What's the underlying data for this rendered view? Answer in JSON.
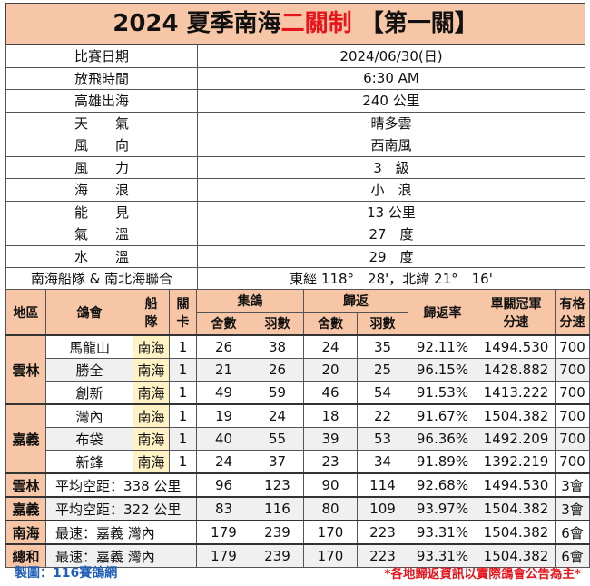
{
  "title": {
    "part1": "2024 夏季南海",
    "part2": "二關制",
    "part3": " 【第一關】"
  },
  "info": [
    {
      "label": "比賽日期",
      "value": "2024/06/30(日)"
    },
    {
      "label": "放飛時間",
      "value": "6:30 AM"
    },
    {
      "label": "高雄出海",
      "value": "240 公里"
    },
    {
      "label": "天　　氣",
      "value": "晴多雲"
    },
    {
      "label": "風　　向",
      "value": "西南風"
    },
    {
      "label": "風　　力",
      "value": "3　級"
    },
    {
      "label": "海　　浪",
      "value": "小　浪"
    },
    {
      "label": "能　　見",
      "value": "13 公里"
    },
    {
      "label": "氣　　溫",
      "value": "27　度"
    },
    {
      "label": "水　　溫",
      "value": "29　度"
    },
    {
      "label": "南海船隊 & 南北海聯合",
      "value": "東經 118°　28'，北緯 21°　16'"
    }
  ],
  "headers": {
    "region": "地區",
    "club": "鴿會",
    "fleet1": "船",
    "fleet2": "隊",
    "stage1": "關",
    "stage2": "卡",
    "collected": "集鴿",
    "returned": "歸返",
    "members": "舍數",
    "birds": "羽數",
    "rate": "歸返率",
    "speed1": "單關冠軍",
    "speed2": "分速",
    "qual1": "有格",
    "qual2": "分速"
  },
  "regions": [
    {
      "name": "雲林",
      "rows": [
        {
          "club": "馬龍山",
          "fleet": "南海",
          "stage": "1",
          "c_members": "26",
          "c_birds": "38",
          "r_members": "24",
          "r_birds": "35",
          "rate": "92.11%",
          "speed": "1494.530",
          "qual": "700"
        },
        {
          "club": "勝全",
          "fleet": "南海",
          "stage": "1",
          "c_members": "21",
          "c_birds": "26",
          "r_members": "20",
          "r_birds": "25",
          "rate": "96.15%",
          "speed": "1428.882",
          "qual": "700"
        },
        {
          "club": "創新",
          "fleet": "南海",
          "stage": "1",
          "c_members": "49",
          "c_birds": "59",
          "r_members": "46",
          "r_birds": "54",
          "rate": "91.53%",
          "speed": "1413.222",
          "qual": "700"
        }
      ]
    },
    {
      "name": "嘉義",
      "rows": [
        {
          "club": "灣內",
          "fleet": "南海",
          "stage": "1",
          "c_members": "19",
          "c_birds": "24",
          "r_members": "18",
          "r_birds": "22",
          "rate": "91.67%",
          "speed": "1504.382",
          "qual": "700"
        },
        {
          "club": "布袋",
          "fleet": "南海",
          "stage": "1",
          "c_members": "40",
          "c_birds": "55",
          "r_members": "39",
          "r_birds": "53",
          "rate": "96.36%",
          "speed": "1492.209",
          "qual": "700"
        },
        {
          "club": "新鋒",
          "fleet": "南海",
          "stage": "1",
          "c_members": "24",
          "c_birds": "37",
          "r_members": "23",
          "r_birds": "34",
          "rate": "91.89%",
          "speed": "1392.219",
          "qual": "700"
        }
      ]
    }
  ],
  "summaries": [
    {
      "name": "雲林",
      "note": "平均空距：338 公里",
      "c_members": "96",
      "c_birds": "123",
      "r_members": "90",
      "r_birds": "114",
      "rate": "92.68%",
      "speed": "1494.530",
      "qual": "3會"
    },
    {
      "name": "嘉義",
      "note": "平均空距：322 公里",
      "c_members": "83",
      "c_birds": "116",
      "r_members": "80",
      "r_birds": "109",
      "rate": "93.97%",
      "speed": "1504.382",
      "qual": "3會"
    },
    {
      "name": "南海",
      "note": "最速：嘉義 灣內",
      "c_members": "179",
      "c_birds": "239",
      "r_members": "170",
      "r_birds": "223",
      "rate": "93.31%",
      "speed": "1504.382",
      "qual": "6會"
    },
    {
      "name": "總和",
      "note": "最速：嘉義 灣內",
      "c_members": "179",
      "c_birds": "239",
      "r_members": "170",
      "r_birds": "223",
      "rate": "93.31%",
      "speed": "1504.382",
      "qual": "6會"
    }
  ],
  "footer": {
    "left": "製圖：116賽鴿網",
    "right": "*各地歸返資訊以實際鴿會公告為主*"
  },
  "colors": {
    "header_bg": "#f7c6a6",
    "team_bg": "#fff2c4",
    "accent_red": "#e8141c",
    "footer_blue": "#1f5fb8"
  }
}
